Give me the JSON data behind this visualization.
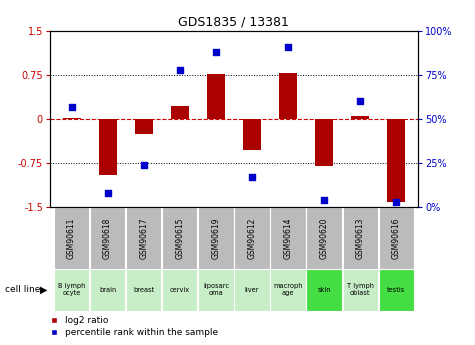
{
  "title": "GDS1835 / 13381",
  "samples": [
    "GSM90611",
    "GSM90618",
    "GSM90617",
    "GSM90615",
    "GSM90619",
    "GSM90612",
    "GSM90614",
    "GSM90620",
    "GSM90613",
    "GSM90616"
  ],
  "cell_lines": [
    "B lymph\nocyte",
    "brain",
    "breast",
    "cervix",
    "liposarc\noma",
    "liver",
    "macroph\nage",
    "skin",
    "T lymph\noblast",
    "testis"
  ],
  "cell_colors": [
    "#c8eec8",
    "#c8eec8",
    "#c8eec8",
    "#c8eec8",
    "#c8eec8",
    "#c8eec8",
    "#c8eec8",
    "#44dd44",
    "#c8eec8",
    "#44dd44"
  ],
  "log2_ratio": [
    0.02,
    -0.95,
    -0.25,
    0.22,
    0.77,
    -0.52,
    0.78,
    -0.8,
    0.05,
    -1.42
  ],
  "pct_rank": [
    57,
    8,
    24,
    78,
    88,
    17,
    91,
    4,
    60,
    3
  ],
  "ylim_left": [
    -1.5,
    1.5
  ],
  "ylim_right": [
    0,
    100
  ],
  "yticks_left": [
    -1.5,
    -0.75,
    0,
    0.75,
    1.5
  ],
  "yticks_right": [
    0,
    25,
    50,
    75,
    100
  ],
  "ytick_labels_left": [
    "-1.5",
    "-0.75",
    "0",
    "0.75",
    "1.5"
  ],
  "ytick_labels_right": [
    "0%",
    "25%",
    "50%",
    "75%",
    "100%"
  ],
  "bar_color": "#aa0000",
  "dot_color": "#0000cc",
  "hline_color": "#cc0000",
  "grid_color": "#000000",
  "sample_bg": "#bbbbbb",
  "legend_items": [
    "log2 ratio",
    "percentile rank within the sample"
  ]
}
